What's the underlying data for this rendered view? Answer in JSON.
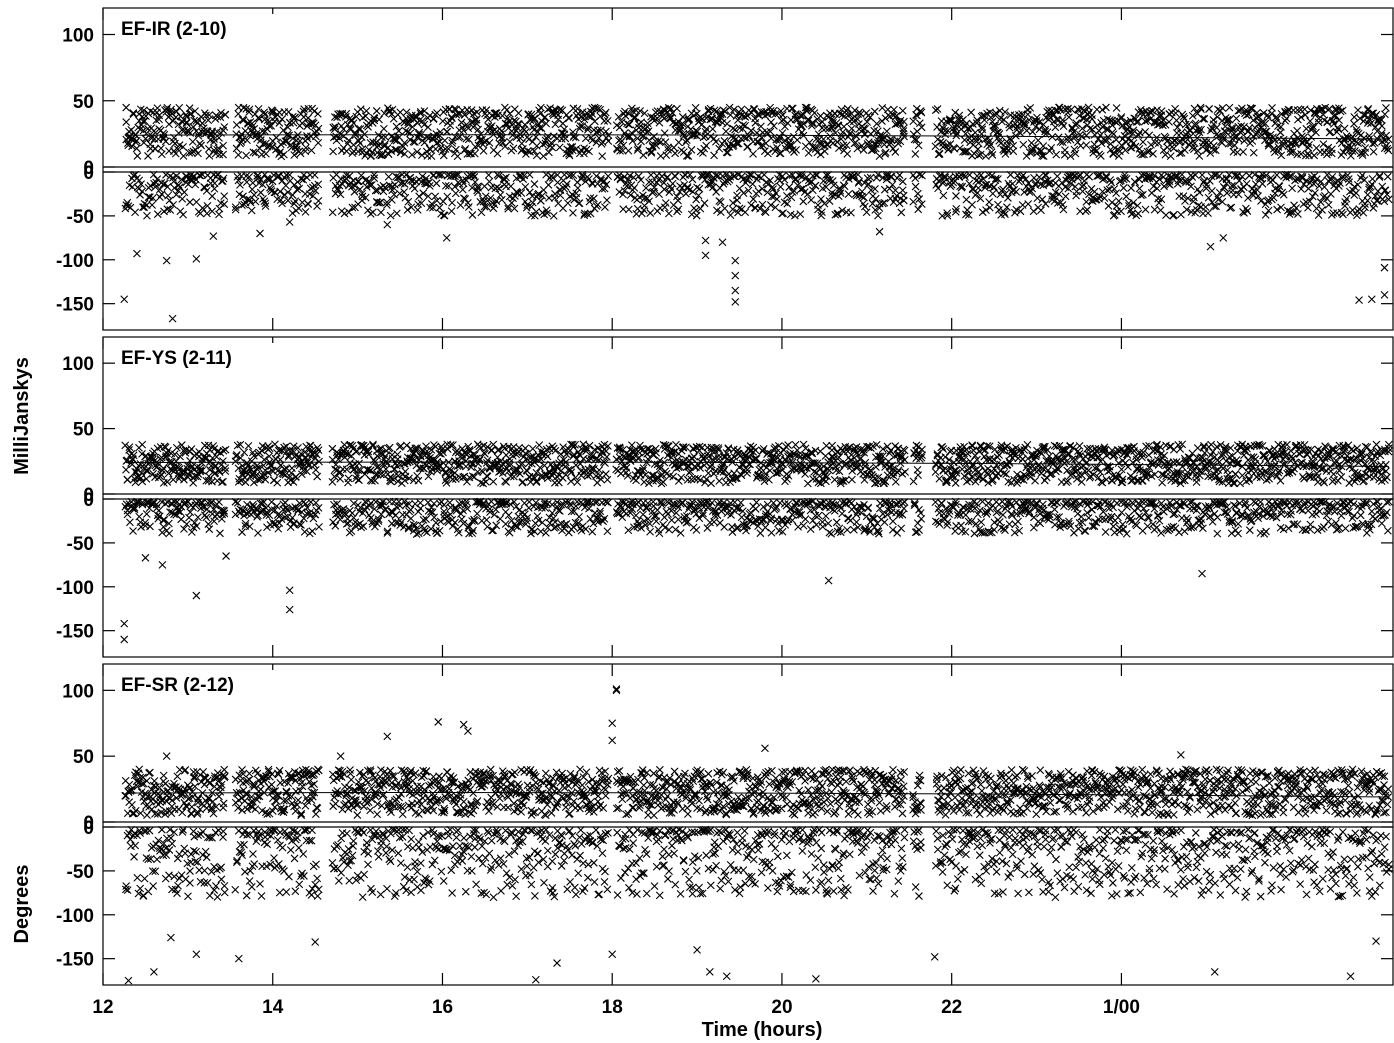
{
  "chart_data": {
    "type": "scatter",
    "description_of_symbol": "x-marker",
    "x_axis": {
      "label": "Time (hours)",
      "range": [
        12,
        27.2
      ],
      "ticks": [
        12,
        14,
        16,
        18,
        20,
        22,
        24
      ],
      "tick_labels": [
        "12",
        "14",
        "16",
        "18",
        "20",
        "22",
        "1/00"
      ]
    },
    "y_axis_labels": {
      "amplitude": "MilliJanskys",
      "phase": "Degrees"
    },
    "panels": [
      {
        "title": "EF-IR (2-10)",
        "amplitude": {
          "ylim": [
            0,
            120
          ],
          "ticks": [
            0,
            50,
            100
          ],
          "model_level": 24,
          "typical_range": [
            8,
            45
          ],
          "max_outlier": 53
        },
        "phase": {
          "ylim": [
            -180,
            0
          ],
          "ticks": [
            0,
            -50,
            -100,
            -150
          ],
          "typical_range": [
            -50,
            -3
          ],
          "outliers": [
            {
              "x": 12.25,
              "y": -145
            },
            {
              "x": 12.4,
              "y": -93
            },
            {
              "x": 12.75,
              "y": -101
            },
            {
              "x": 12.82,
              "y": -167
            },
            {
              "x": 13.1,
              "y": -99
            },
            {
              "x": 13.3,
              "y": -73
            },
            {
              "x": 13.85,
              "y": -70
            },
            {
              "x": 14.2,
              "y": -57
            },
            {
              "x": 15.35,
              "y": -60
            },
            {
              "x": 16.05,
              "y": -75
            },
            {
              "x": 19.1,
              "y": -95
            },
            {
              "x": 19.1,
              "y": -78
            },
            {
              "x": 19.3,
              "y": -80
            },
            {
              "x": 19.45,
              "y": -101
            },
            {
              "x": 19.45,
              "y": -118
            },
            {
              "x": 19.45,
              "y": -135
            },
            {
              "x": 19.45,
              "y": -148
            },
            {
              "x": 21.15,
              "y": -68
            },
            {
              "x": 25.05,
              "y": -85
            },
            {
              "x": 25.2,
              "y": -75
            },
            {
              "x": 26.8,
              "y": -146
            },
            {
              "x": 26.95,
              "y": -145
            },
            {
              "x": 27.1,
              "y": -140
            },
            {
              "x": 27.1,
              "y": -109
            }
          ]
        }
      },
      {
        "title": "EF-YS (2-11)",
        "amplitude": {
          "ylim": [
            0,
            120
          ],
          "ticks": [
            0,
            50,
            100
          ],
          "model_level": 24,
          "typical_range": [
            8,
            38
          ],
          "max_outlier": 46
        },
        "phase": {
          "ylim": [
            -180,
            0
          ],
          "ticks": [
            0,
            -50,
            -100,
            -150
          ],
          "typical_range": [
            -40,
            -3
          ],
          "outliers": [
            {
              "x": 12.25,
              "y": -142
            },
            {
              "x": 12.25,
              "y": -160
            },
            {
              "x": 12.5,
              "y": -67
            },
            {
              "x": 12.7,
              "y": -75
            },
            {
              "x": 13.1,
              "y": -110
            },
            {
              "x": 13.45,
              "y": -65
            },
            {
              "x": 14.2,
              "y": -104
            },
            {
              "x": 14.2,
              "y": -126
            },
            {
              "x": 20.55,
              "y": -93
            },
            {
              "x": 24.95,
              "y": -85
            }
          ]
        }
      },
      {
        "title": "EF-SR (2-12)",
        "amplitude": {
          "ylim": [
            0,
            120
          ],
          "ticks": [
            0,
            50,
            100
          ],
          "model_level": 22,
          "typical_range": [
            5,
            40
          ],
          "max_outlier": 101,
          "outliers": [
            {
              "x": 18.05,
              "y": 101
            },
            {
              "x": 18.05,
              "y": 100
            },
            {
              "x": 15.95,
              "y": 76
            },
            {
              "x": 18.0,
              "y": 75
            },
            {
              "x": 16.25,
              "y": 74
            },
            {
              "x": 16.3,
              "y": 69
            },
            {
              "x": 15.35,
              "y": 65
            },
            {
              "x": 18.0,
              "y": 62
            },
            {
              "x": 19.8,
              "y": 56
            },
            {
              "x": 24.7,
              "y": 51
            },
            {
              "x": 12.75,
              "y": 50
            },
            {
              "x": 14.8,
              "y": 50
            }
          ]
        },
        "phase": {
          "ylim": [
            -180,
            0
          ],
          "ticks": [
            0,
            -50,
            -100,
            -150
          ],
          "typical_range": [
            -80,
            -3
          ],
          "outliers": [
            {
              "x": 12.3,
              "y": -175
            },
            {
              "x": 12.6,
              "y": -165
            },
            {
              "x": 12.8,
              "y": -126
            },
            {
              "x": 13.1,
              "y": -145
            },
            {
              "x": 13.6,
              "y": -150
            },
            {
              "x": 14.5,
              "y": -131
            },
            {
              "x": 17.1,
              "y": -174
            },
            {
              "x": 17.35,
              "y": -155
            },
            {
              "x": 18.0,
              "y": -145
            },
            {
              "x": 19.0,
              "y": -140
            },
            {
              "x": 19.15,
              "y": -165
            },
            {
              "x": 19.35,
              "y": -170
            },
            {
              "x": 20.4,
              "y": -173
            },
            {
              "x": 21.8,
              "y": -148
            },
            {
              "x": 25.1,
              "y": -165
            },
            {
              "x": 26.7,
              "y": -170
            },
            {
              "x": 27.0,
              "y": -130
            }
          ]
        }
      }
    ],
    "gaps": [
      [
        13.45,
        13.55
      ],
      [
        14.55,
        14.7
      ],
      [
        17.95,
        18.05
      ],
      [
        21.45,
        21.55
      ],
      [
        21.65,
        21.8
      ]
    ]
  }
}
